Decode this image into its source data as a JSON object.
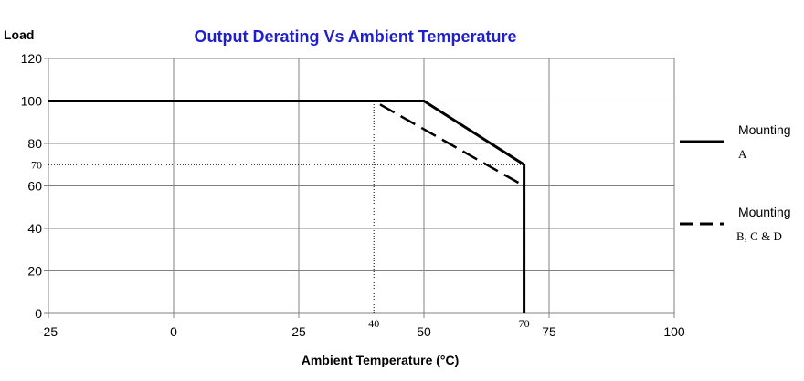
{
  "chart_data": {
    "type": "line",
    "title": "Output Derating Vs Ambient Temperature",
    "xlabel": "Ambient Temperature (°C)",
    "ylabel": "Load",
    "xlim": [
      -25,
      100
    ],
    "ylim": [
      0,
      120
    ],
    "x_ticks": [
      "-25",
      "0",
      "25",
      "50",
      "75",
      "100"
    ],
    "x_tick_values": [
      -25,
      0,
      25,
      50,
      75,
      100
    ],
    "y_ticks": [
      "0",
      "20",
      "40",
      "60",
      "80",
      "100",
      "120"
    ],
    "y_tick_values": [
      0,
      20,
      40,
      60,
      80,
      100,
      120
    ],
    "grid": true,
    "legend_position": "right",
    "series": [
      {
        "name": "Mounting A",
        "legend_line1": "Mounting",
        "legend_line2": "A",
        "style": "solid",
        "color": "#000000",
        "points": [
          [
            -25,
            100
          ],
          [
            50,
            100
          ],
          [
            70,
            70
          ],
          [
            70,
            0
          ]
        ]
      },
      {
        "name": "Mounting B, C & D",
        "legend_line1": "Mounting",
        "legend_line2": "B, C & D",
        "style": "dashed",
        "color": "#000000",
        "points": [
          [
            -25,
            100
          ],
          [
            40,
            100
          ],
          [
            70,
            60
          ],
          [
            70,
            0
          ]
        ]
      }
    ],
    "annotations": [
      {
        "text": "40",
        "x": 40,
        "y": 0,
        "kind": "x-callout"
      },
      {
        "text": "70",
        "x": 70,
        "y": 0,
        "kind": "x-callout"
      },
      {
        "text": "70",
        "x": -25,
        "y": 70,
        "kind": "y-callout"
      }
    ],
    "reference_lines": [
      {
        "orientation": "vertical",
        "x": 40,
        "y_from": 0,
        "y_to": 100,
        "style": "dotted"
      },
      {
        "orientation": "horizontal",
        "y": 70,
        "x_from": -25,
        "x_to": 70,
        "style": "dotted"
      }
    ]
  }
}
